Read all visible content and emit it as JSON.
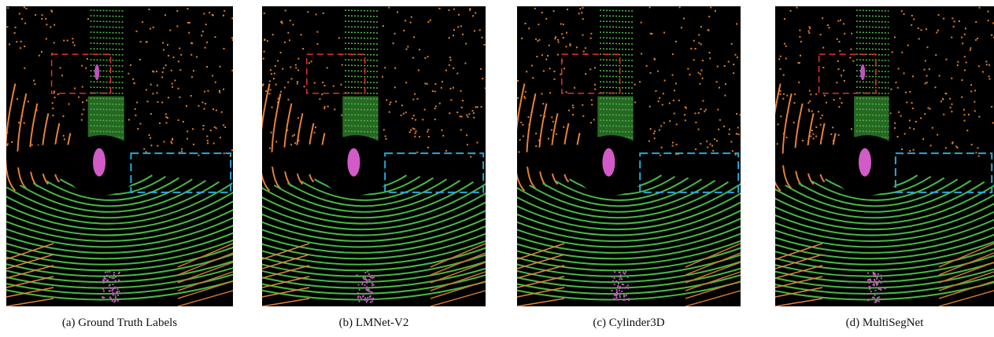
{
  "figure": {
    "panels": [
      {
        "caption": "(a) Ground Truth Labels"
      },
      {
        "caption": "(b) LMNet-V2"
      },
      {
        "caption": "(c) Cylinder3D"
      },
      {
        "caption": "(d) MultiSegNet"
      }
    ]
  }
}
